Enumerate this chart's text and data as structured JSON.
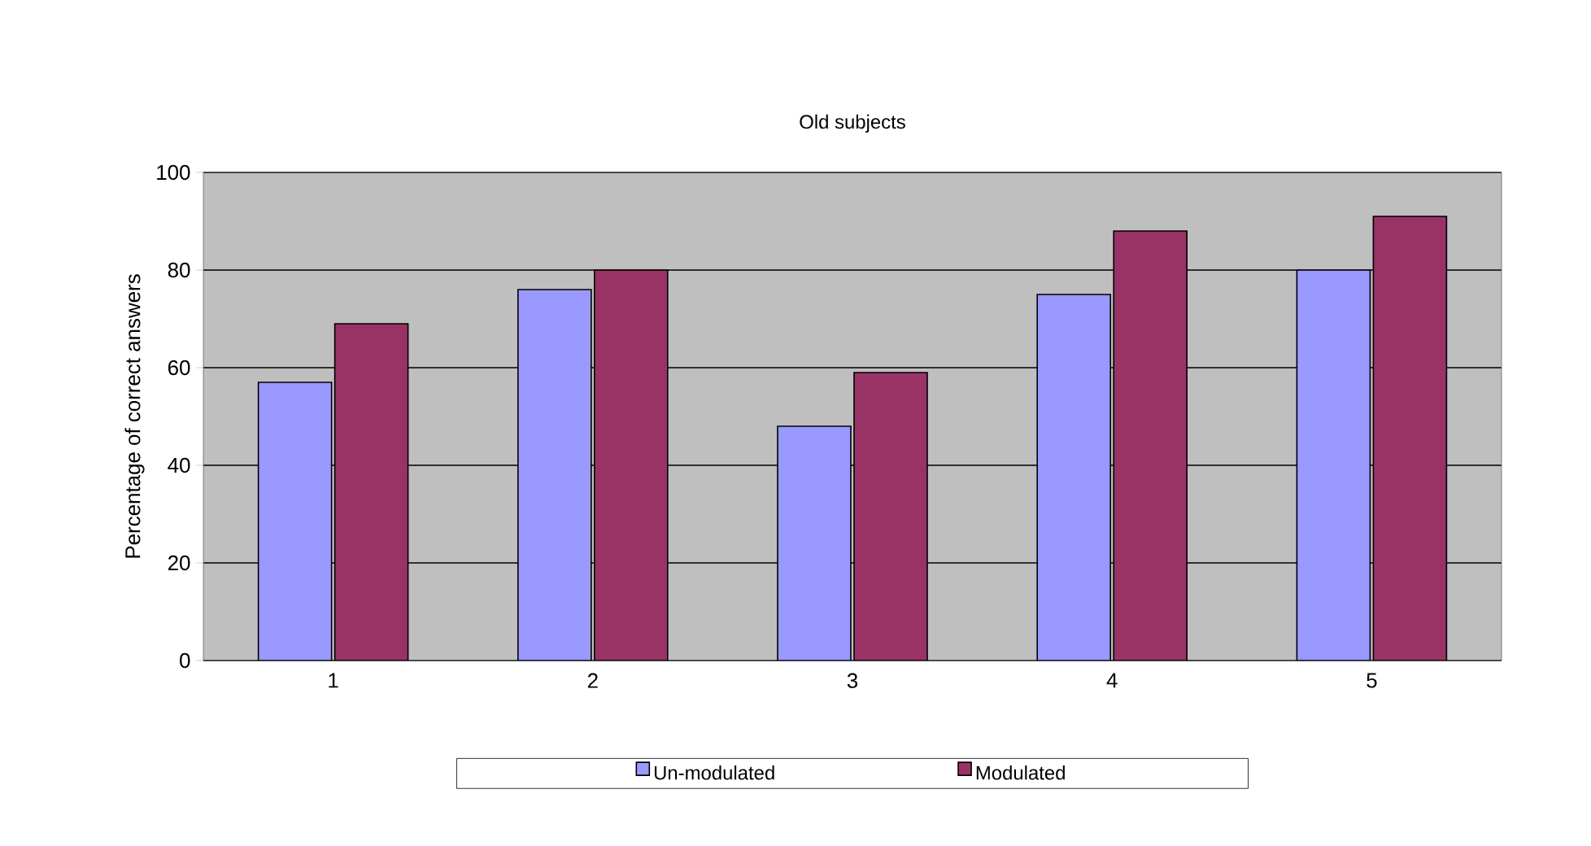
{
  "chart_data": {
    "type": "bar",
    "title": "Old subjects",
    "ylabel": "Percentage of correct answers",
    "categories": [
      "1",
      "2",
      "3",
      "4",
      "5"
    ],
    "series": [
      {
        "name": "Un-modulated",
        "color": "#9999ff",
        "values": [
          57,
          76,
          48,
          75,
          80
        ]
      },
      {
        "name": "Modulated",
        "color": "#993366",
        "values": [
          69,
          80,
          59,
          88,
          91
        ]
      }
    ],
    "ylim": [
      0,
      100
    ],
    "yticks": [
      0,
      20,
      40,
      60,
      80,
      100
    ],
    "grid": "y",
    "legend": "bottom"
  }
}
